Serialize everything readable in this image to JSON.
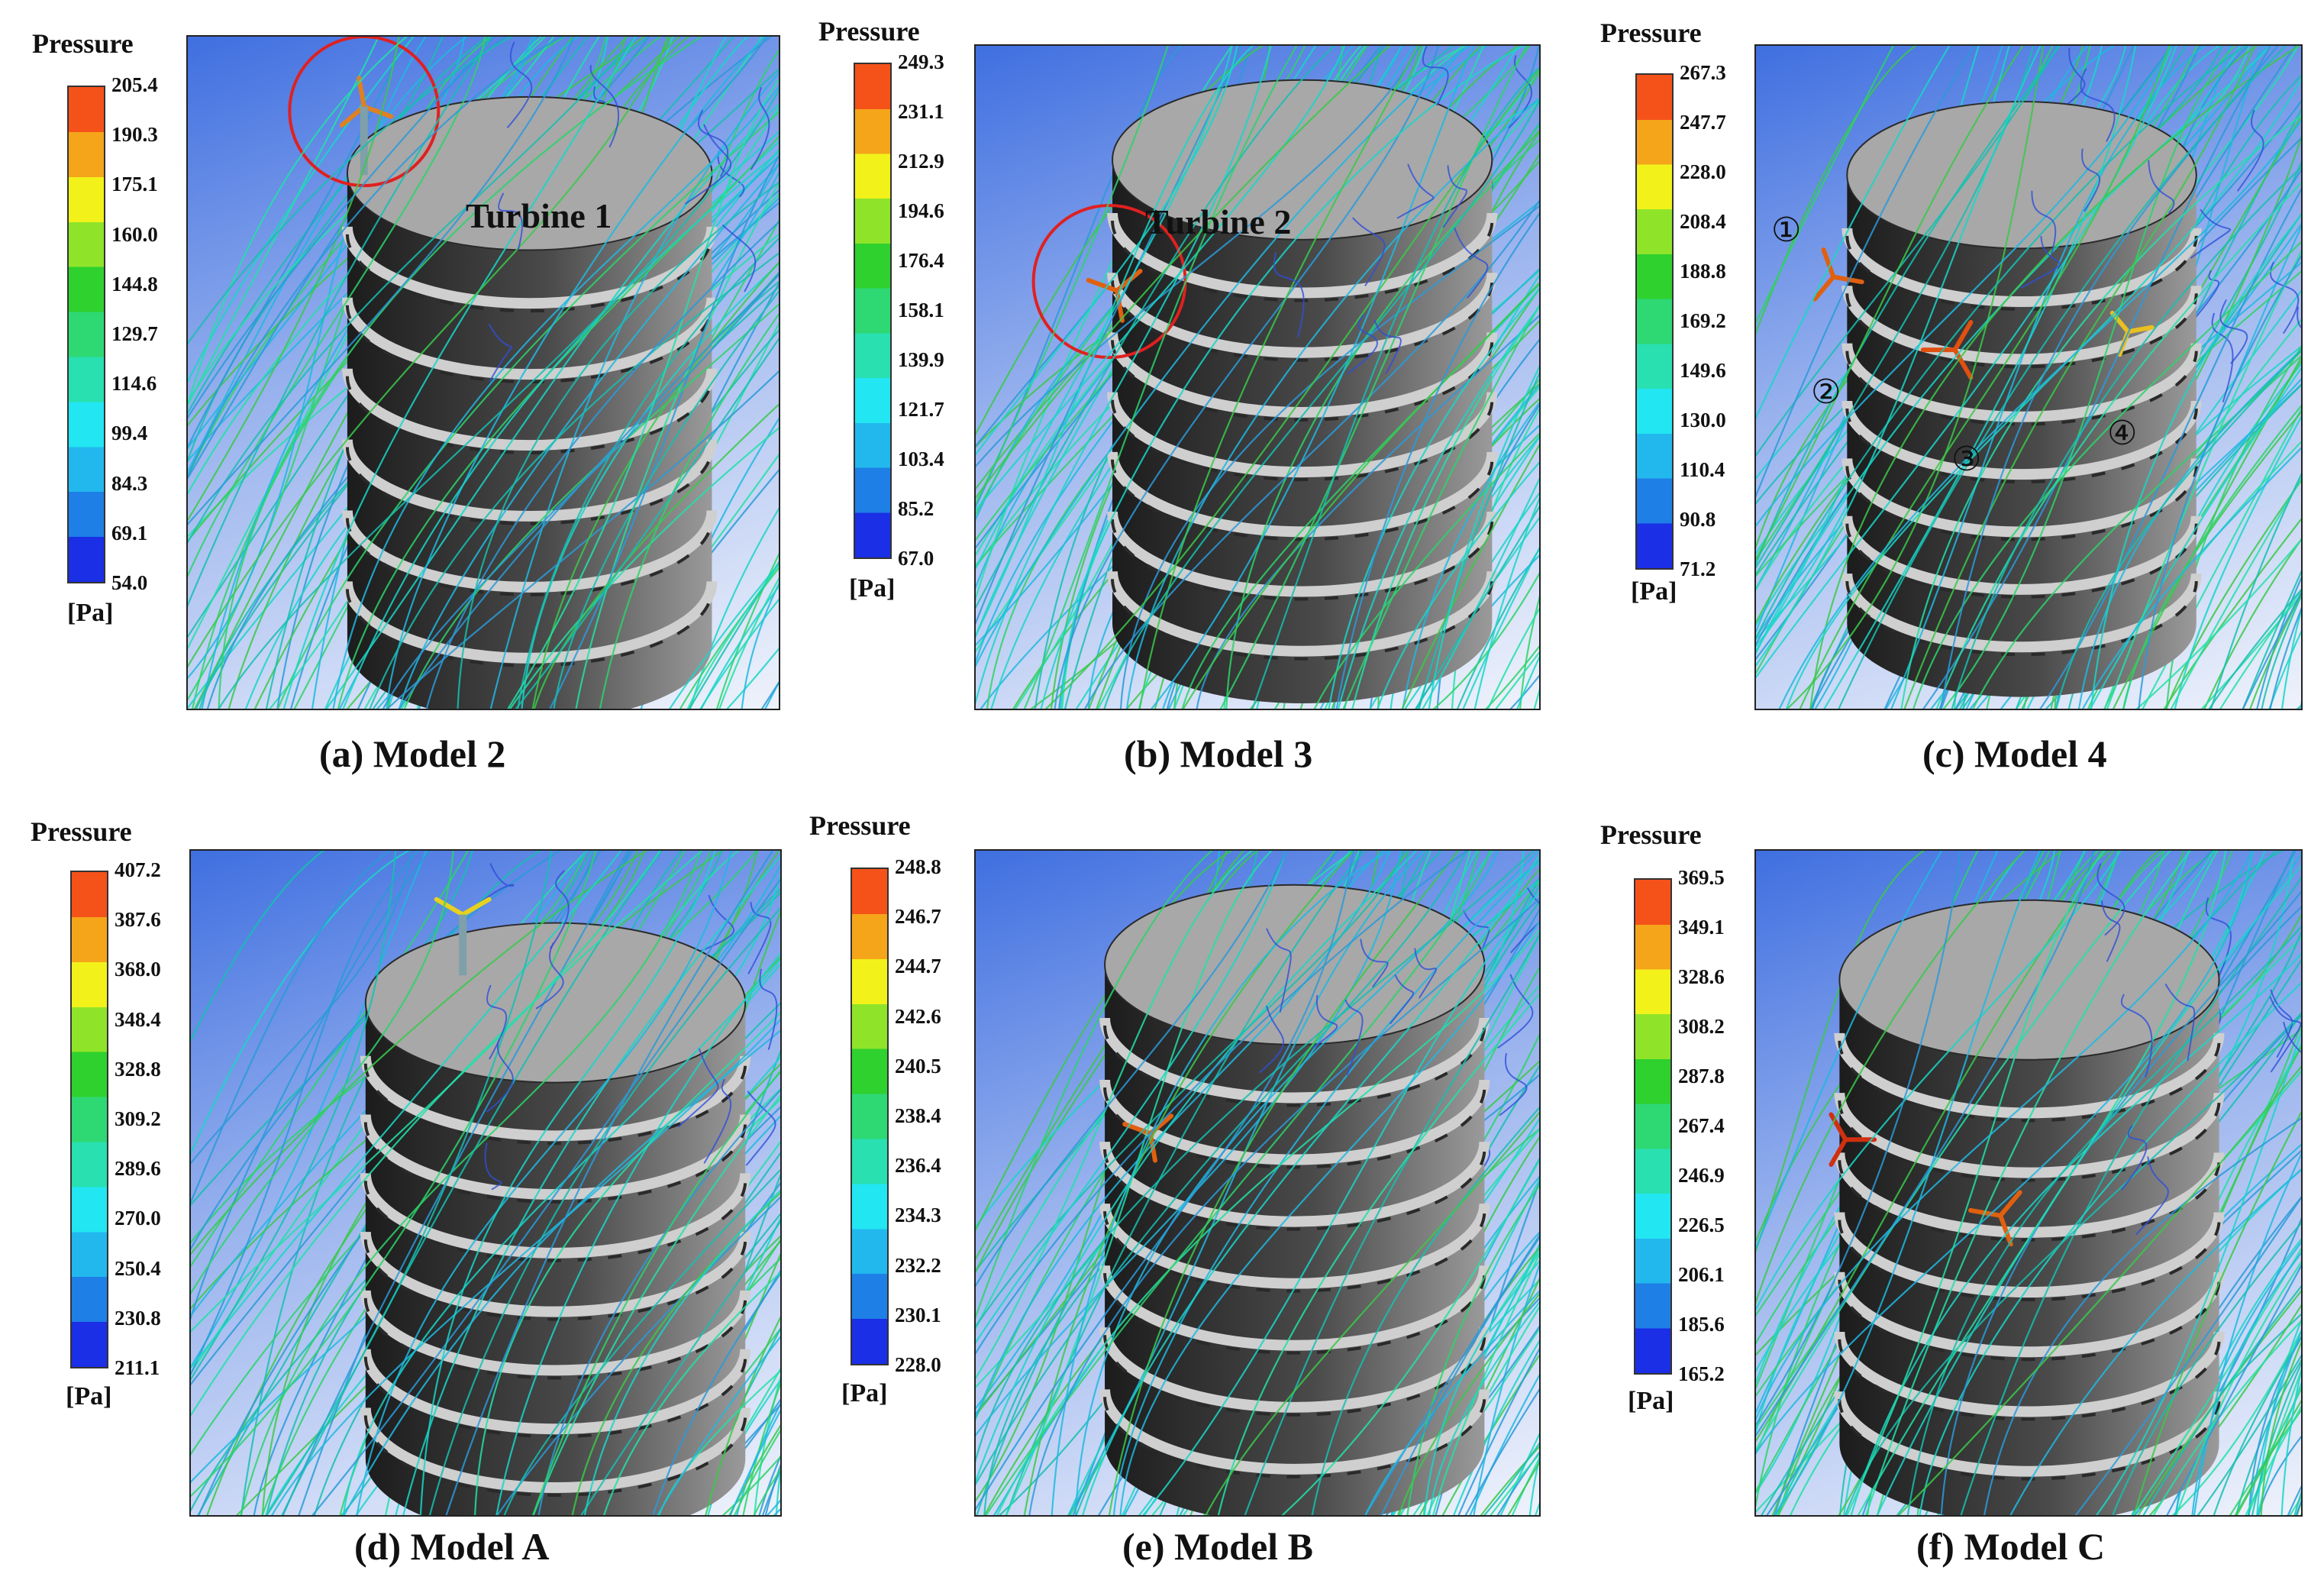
{
  "colorbar": {
    "title": "Pressure",
    "unit": "[Pa]",
    "colors": [
      "#f5521a",
      "#f5a51a",
      "#f2f21a",
      "#8fe42a",
      "#2ed12e",
      "#2ed873",
      "#28e0b0",
      "#22e6f2",
      "#22b8ee",
      "#1e7fe6",
      "#1a2fe6"
    ]
  },
  "panels": [
    {
      "caption": "(a) Model 2",
      "annotation": "Turbine 1",
      "ticks": [
        "205.4",
        "190.3",
        "175.1",
        "160.0",
        "144.8",
        "129.7",
        "114.6",
        "99.4",
        "84.3",
        "69.1",
        "54.0"
      ]
    },
    {
      "caption": "(b) Model 3",
      "annotation": "Turbine 2",
      "ticks": [
        "249.3",
        "231.1",
        "212.9",
        "194.6",
        "176.4",
        "158.1",
        "139.9",
        "121.7",
        "103.4",
        "85.2",
        "67.0"
      ]
    },
    {
      "caption": "(c) Model 4",
      "markers": [
        "①",
        "②",
        "③",
        "④"
      ],
      "ticks": [
        "267.3",
        "247.7",
        "228.0",
        "208.4",
        "188.8",
        "169.2",
        "149.6",
        "130.0",
        "110.4",
        "90.8",
        "71.2"
      ]
    },
    {
      "caption": "(d) Model A",
      "ticks": [
        "407.2",
        "387.6",
        "368.0",
        "348.4",
        "328.8",
        "309.2",
        "289.6",
        "270.0",
        "250.4",
        "230.8",
        "211.1"
      ]
    },
    {
      "caption": "(e) Model B",
      "ticks": [
        "248.8",
        "246.7",
        "244.7",
        "242.6",
        "240.5",
        "238.4",
        "236.4",
        "234.3",
        "232.2",
        "230.1",
        "228.0"
      ]
    },
    {
      "caption": "(f) Model C",
      "ticks": [
        "369.5",
        "349.1",
        "328.6",
        "308.2",
        "287.8",
        "267.4",
        "246.9",
        "226.5",
        "206.1",
        "185.6",
        "165.2"
      ]
    }
  ]
}
